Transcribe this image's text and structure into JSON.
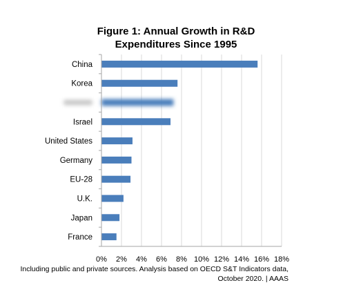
{
  "chart_data": {
    "type": "bar",
    "orientation": "horizontal",
    "title_lines": [
      "Figure 1: Annual Growth in R&D",
      "Expenditures Since 1995"
    ],
    "categories": [
      "China",
      "Korea",
      "",
      "Israel",
      "United States",
      "Germany",
      "EU-28",
      "U.K.",
      "Japan",
      "France"
    ],
    "values": [
      15.6,
      7.6,
      7.2,
      6.9,
      3.1,
      3.0,
      2.9,
      2.2,
      1.8,
      1.5
    ],
    "xlim": [
      0,
      18
    ],
    "x_ticks": [
      0,
      2,
      4,
      6,
      8,
      10,
      12,
      14,
      16,
      18
    ],
    "x_tick_labels": [
      "0%",
      "2%",
      "4%",
      "6%",
      "8%",
      "10%",
      "12%",
      "14%",
      "16%",
      "18%"
    ],
    "xlabel": "",
    "ylabel": "",
    "grid": "vertical",
    "legend": "none",
    "obscured_category_index": 2,
    "colors": {
      "bar": "#4a7ebb",
      "grid": "#d9d9d9",
      "axis": "#a6a6a6"
    }
  },
  "caption_lines": [
    "Including public and private sources. Analysis based on OECD S&T Indicators data,",
    "October 2020. | AAAS"
  ]
}
